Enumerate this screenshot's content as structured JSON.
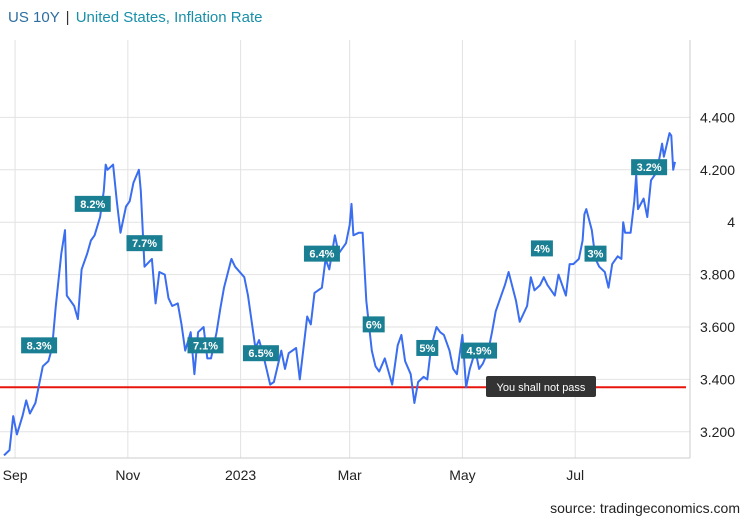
{
  "header": {
    "symbol": "US 10Y",
    "separator": "|",
    "indicator": "United States, Inflation Rate"
  },
  "source": "source: tradingeconomics.com",
  "colors": {
    "line": "#3a6df0",
    "flag": "#1b7f93",
    "threshold": "#e8150d",
    "note_bg": "#333333",
    "grid": "#e2e2e2"
  },
  "chart_data": {
    "type": "line",
    "title": "",
    "xlabel": "",
    "ylabel": "",
    "x_range": [
      "2022-08-26",
      "2023-08-24"
    ],
    "ylim": [
      3.1,
      4.6
    ],
    "grid": true,
    "y_ticks": [
      "3.200",
      "3.400",
      "3.600",
      "3.800",
      "4",
      "4.200",
      "4.400"
    ],
    "y_tick_values": [
      3.2,
      3.4,
      3.6,
      3.8,
      4.0,
      4.2,
      4.4
    ],
    "x_ticks": [
      "Sep",
      "Nov",
      "2023",
      "Mar",
      "May",
      "Jul"
    ],
    "x_tick_dates": [
      "2022-09-01",
      "2022-11-01",
      "2023-01-01",
      "2023-03-01",
      "2023-05-01",
      "2023-07-01"
    ],
    "series": [
      {
        "points": [
          [
            "2022-08-26",
            3.11
          ],
          [
            "2022-08-29",
            3.13
          ],
          [
            "2022-08-31",
            3.26
          ],
          [
            "2022-09-02",
            3.19
          ],
          [
            "2022-09-05",
            3.26
          ],
          [
            "2022-09-07",
            3.32
          ],
          [
            "2022-09-09",
            3.27
          ],
          [
            "2022-09-12",
            3.31
          ],
          [
            "2022-09-14",
            3.38
          ],
          [
            "2022-09-16",
            3.45
          ],
          [
            "2022-09-19",
            3.47
          ],
          [
            "2022-09-21",
            3.52
          ],
          [
            "2022-09-23",
            3.68
          ],
          [
            "2022-09-26",
            3.88
          ],
          [
            "2022-09-28",
            3.97
          ],
          [
            "2022-09-29",
            3.72
          ],
          [
            "2022-10-03",
            3.68
          ],
          [
            "2022-10-05",
            3.63
          ],
          [
            "2022-10-07",
            3.82
          ],
          [
            "2022-10-10",
            3.88
          ],
          [
            "2022-10-12",
            3.93
          ],
          [
            "2022-10-14",
            3.95
          ],
          [
            "2022-10-17",
            4.02
          ],
          [
            "2022-10-19",
            4.12
          ],
          [
            "2022-10-20",
            4.22
          ],
          [
            "2022-10-21",
            4.2
          ],
          [
            "2022-10-24",
            4.22
          ],
          [
            "2022-10-26",
            4.08
          ],
          [
            "2022-10-28",
            3.96
          ],
          [
            "2022-10-31",
            4.06
          ],
          [
            "2022-11-02",
            4.08
          ],
          [
            "2022-11-04",
            4.15
          ],
          [
            "2022-11-07",
            4.2
          ],
          [
            "2022-11-08",
            4.12
          ],
          [
            "2022-11-10",
            3.83
          ],
          [
            "2022-11-14",
            3.86
          ],
          [
            "2022-11-16",
            3.69
          ],
          [
            "2022-11-18",
            3.81
          ],
          [
            "2022-11-21",
            3.8
          ],
          [
            "2022-11-23",
            3.71
          ],
          [
            "2022-11-25",
            3.68
          ],
          [
            "2022-11-28",
            3.69
          ],
          [
            "2022-11-30",
            3.61
          ],
          [
            "2022-12-02",
            3.51
          ],
          [
            "2022-12-05",
            3.58
          ],
          [
            "2022-12-07",
            3.42
          ],
          [
            "2022-12-09",
            3.58
          ],
          [
            "2022-12-12",
            3.6
          ],
          [
            "2022-12-14",
            3.48
          ],
          [
            "2022-12-16",
            3.48
          ],
          [
            "2022-12-19",
            3.58
          ],
          [
            "2022-12-21",
            3.67
          ],
          [
            "2022-12-23",
            3.75
          ],
          [
            "2022-12-27",
            3.86
          ],
          [
            "2022-12-29",
            3.83
          ],
          [
            "2023-01-03",
            3.79
          ],
          [
            "2023-01-05",
            3.72
          ],
          [
            "2023-01-09",
            3.52
          ],
          [
            "2023-01-11",
            3.55
          ],
          [
            "2023-01-13",
            3.5
          ],
          [
            "2023-01-17",
            3.38
          ],
          [
            "2023-01-19",
            3.39
          ],
          [
            "2023-01-23",
            3.51
          ],
          [
            "2023-01-25",
            3.44
          ],
          [
            "2023-01-27",
            3.5
          ],
          [
            "2023-01-31",
            3.52
          ],
          [
            "2023-02-02",
            3.4
          ],
          [
            "2023-02-06",
            3.64
          ],
          [
            "2023-02-08",
            3.61
          ],
          [
            "2023-02-10",
            3.73
          ],
          [
            "2023-02-14",
            3.75
          ],
          [
            "2023-02-16",
            3.86
          ],
          [
            "2023-02-18",
            3.82
          ],
          [
            "2023-02-21",
            3.95
          ],
          [
            "2023-02-23",
            3.88
          ],
          [
            "2023-02-27",
            3.92
          ],
          [
            "2023-03-01",
            3.99
          ],
          [
            "2023-03-02",
            4.07
          ],
          [
            "2023-03-03",
            3.95
          ],
          [
            "2023-03-06",
            3.96
          ],
          [
            "2023-03-08",
            3.96
          ],
          [
            "2023-03-10",
            3.7
          ],
          [
            "2023-03-13",
            3.51
          ],
          [
            "2023-03-15",
            3.45
          ],
          [
            "2023-03-17",
            3.43
          ],
          [
            "2023-03-20",
            3.48
          ],
          [
            "2023-03-22",
            3.43
          ],
          [
            "2023-03-24",
            3.38
          ],
          [
            "2023-03-27",
            3.53
          ],
          [
            "2023-03-29",
            3.57
          ],
          [
            "2023-03-31",
            3.47
          ],
          [
            "2023-04-03",
            3.42
          ],
          [
            "2023-04-05",
            3.31
          ],
          [
            "2023-04-07",
            3.39
          ],
          [
            "2023-04-10",
            3.41
          ],
          [
            "2023-04-12",
            3.4
          ],
          [
            "2023-04-14",
            3.52
          ],
          [
            "2023-04-17",
            3.6
          ],
          [
            "2023-04-19",
            3.58
          ],
          [
            "2023-04-21",
            3.57
          ],
          [
            "2023-04-24",
            3.51
          ],
          [
            "2023-04-26",
            3.44
          ],
          [
            "2023-04-28",
            3.42
          ],
          [
            "2023-05-01",
            3.57
          ],
          [
            "2023-05-03",
            3.37
          ],
          [
            "2023-05-05",
            3.44
          ],
          [
            "2023-05-08",
            3.51
          ],
          [
            "2023-05-10",
            3.44
          ],
          [
            "2023-05-12",
            3.46
          ],
          [
            "2023-05-15",
            3.51
          ],
          [
            "2023-05-17",
            3.58
          ],
          [
            "2023-05-19",
            3.66
          ],
          [
            "2023-05-22",
            3.72
          ],
          [
            "2023-05-24",
            3.76
          ],
          [
            "2023-05-26",
            3.81
          ],
          [
            "2023-05-30",
            3.7
          ],
          [
            "2023-06-01",
            3.62
          ],
          [
            "2023-06-05",
            3.68
          ],
          [
            "2023-06-07",
            3.79
          ],
          [
            "2023-06-09",
            3.74
          ],
          [
            "2023-06-12",
            3.76
          ],
          [
            "2023-06-14",
            3.79
          ],
          [
            "2023-06-16",
            3.76
          ],
          [
            "2023-06-20",
            3.72
          ],
          [
            "2023-06-22",
            3.8
          ],
          [
            "2023-06-26",
            3.72
          ],
          [
            "2023-06-28",
            3.84
          ],
          [
            "2023-06-30",
            3.84
          ],
          [
            "2023-07-03",
            3.86
          ],
          [
            "2023-07-05",
            3.93
          ],
          [
            "2023-07-06",
            4.03
          ],
          [
            "2023-07-07",
            4.05
          ],
          [
            "2023-07-10",
            3.97
          ],
          [
            "2023-07-12",
            3.86
          ],
          [
            "2023-07-14",
            3.83
          ],
          [
            "2023-07-17",
            3.81
          ],
          [
            "2023-07-19",
            3.75
          ],
          [
            "2023-07-21",
            3.84
          ],
          [
            "2023-07-24",
            3.87
          ],
          [
            "2023-07-26",
            3.86
          ],
          [
            "2023-07-27",
            4.0
          ],
          [
            "2023-07-28",
            3.96
          ],
          [
            "2023-07-31",
            3.96
          ],
          [
            "2023-08-02",
            4.08
          ],
          [
            "2023-08-03",
            4.18
          ],
          [
            "2023-08-04",
            4.05
          ],
          [
            "2023-08-07",
            4.09
          ],
          [
            "2023-08-09",
            4.02
          ],
          [
            "2023-08-11",
            4.16
          ],
          [
            "2023-08-14",
            4.19
          ],
          [
            "2023-08-16",
            4.26
          ],
          [
            "2023-08-17",
            4.3
          ],
          [
            "2023-08-18",
            4.25
          ],
          [
            "2023-08-21",
            4.34
          ],
          [
            "2023-08-22",
            4.33
          ],
          [
            "2023-08-23",
            4.2
          ],
          [
            "2023-08-24",
            4.23
          ]
        ]
      }
    ],
    "annotations": [
      {
        "label": "8.3%",
        "date": "2022-09-14",
        "value": 3.53
      },
      {
        "label": "8.2%",
        "date": "2022-10-13",
        "value": 4.07
      },
      {
        "label": "7.7%",
        "date": "2022-11-10",
        "value": 3.92
      },
      {
        "label": "7.1%",
        "date": "2022-12-13",
        "value": 3.53
      },
      {
        "label": "6.5%",
        "date": "2023-01-12",
        "value": 3.5
      },
      {
        "label": "6.4%",
        "date": "2023-02-14",
        "value": 3.88
      },
      {
        "label": "6%",
        "date": "2023-03-14",
        "value": 3.61
      },
      {
        "label": "5%",
        "date": "2023-04-12",
        "value": 3.52
      },
      {
        "label": "4.9%",
        "date": "2023-05-10",
        "value": 3.51
      },
      {
        "label": "4%",
        "date": "2023-06-13",
        "value": 3.9
      },
      {
        "label": "3%",
        "date": "2023-07-12",
        "value": 3.88
      },
      {
        "label": "3.2%",
        "date": "2023-08-10",
        "value": 4.21
      }
    ],
    "threshold": {
      "value": 3.37,
      "label": "You shall not pass"
    }
  }
}
